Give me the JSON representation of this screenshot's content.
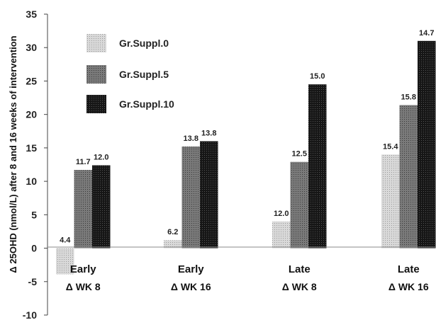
{
  "chart_data": {
    "type": "bar",
    "ylabel": "Δ 25OHD (nmol/L) after 8 and 16 weeks of intervention",
    "ylim": [
      -10,
      35
    ],
    "yticks": [
      35,
      30,
      25,
      20,
      15,
      10,
      5,
      0,
      -5,
      -10
    ],
    "categories": [
      {
        "line1": "Early",
        "line2": "Δ WK 8"
      },
      {
        "line1": "Early",
        "line2": "Δ WK 16"
      },
      {
        "line1": "Late",
        "line2": "Δ WK 8"
      },
      {
        "line1": "Late",
        "line2": "Δ WK 16"
      }
    ],
    "series": [
      {
        "name": "Gr.Suppl.0",
        "color": "#c8c8c8",
        "values": [
          -3.9,
          1.2,
          4.0,
          14.0
        ],
        "labels": [
          "4.4",
          "6.2",
          "12.0",
          "15.4"
        ]
      },
      {
        "name": "Gr.Suppl.5",
        "color": "#6e6e6e",
        "values": [
          11.7,
          15.2,
          12.9,
          21.4
        ],
        "labels": [
          "11.7",
          "13.8",
          "12.5",
          "15.8"
        ]
      },
      {
        "name": "Gr.Suppl.10",
        "color": "#111111",
        "values": [
          12.4,
          16.0,
          24.5,
          31.0
        ],
        "labels": [
          "12.0",
          "13.8",
          "15.0",
          "14.7"
        ]
      }
    ],
    "legend_position": "top-left",
    "grid": false
  }
}
